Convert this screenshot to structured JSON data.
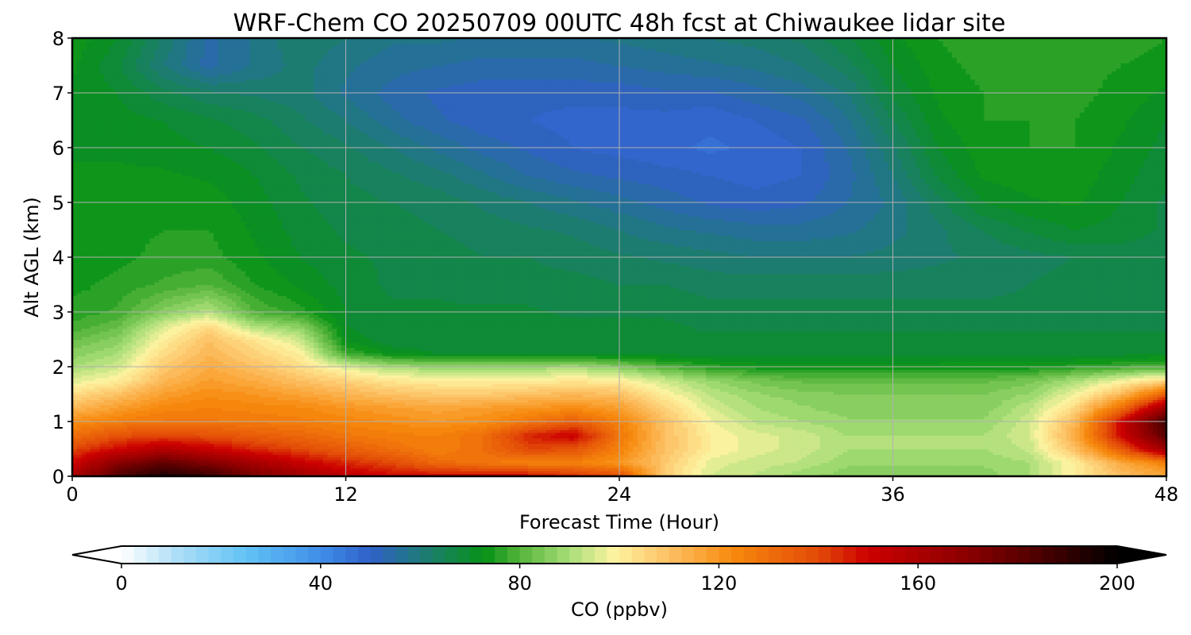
{
  "chart_data": {
    "type": "heatmap",
    "title": "WRF-Chem CO  20250709 00UTC 48h fcst at Chiwaukee lidar site",
    "xlabel": "Forecast Time (Hour)",
    "ylabel": "Alt AGL (km)",
    "xlim": [
      0,
      48
    ],
    "ylim": [
      0,
      8
    ],
    "x_ticks": [
      0,
      12,
      24,
      36,
      48
    ],
    "y_ticks": [
      0,
      1,
      2,
      3,
      4,
      5,
      6,
      7,
      8
    ],
    "grid": true,
    "x": [
      0,
      2,
      4,
      6,
      8,
      10,
      12,
      14,
      16,
      18,
      20,
      22,
      24,
      26,
      28,
      30,
      32,
      34,
      36,
      38,
      40,
      42,
      44,
      46,
      48
    ],
    "y": [
      0,
      0.25,
      0.5,
      0.75,
      1,
      1.25,
      1.5,
      1.75,
      2,
      2.25,
      2.5,
      2.75,
      3,
      3.5,
      4,
      4.5,
      5,
      5.5,
      6,
      6.5,
      7,
      7.5,
      8
    ],
    "z": [
      [
        160,
        185,
        195,
        190,
        175,
        165,
        155,
        150,
        150,
        150,
        150,
        145,
        140,
        108,
        95,
        92,
        88,
        86,
        86,
        86,
        86,
        90,
        100,
        110,
        115
      ],
      [
        150,
        170,
        180,
        172,
        162,
        152,
        145,
        140,
        132,
        128,
        125,
        125,
        120,
        108,
        96,
        94,
        92,
        88,
        88,
        88,
        88,
        90,
        100,
        115,
        125
      ],
      [
        140,
        150,
        158,
        152,
        145,
        140,
        135,
        130,
        125,
        130,
        140,
        138,
        125,
        110,
        100,
        96,
        94,
        90,
        90,
        90,
        90,
        93,
        110,
        135,
        165
      ],
      [
        130,
        138,
        140,
        138,
        135,
        132,
        128,
        126,
        125,
        130,
        145,
        152,
        128,
        110,
        100,
        96,
        94,
        90,
        90,
        90,
        90,
        95,
        115,
        150,
        182
      ],
      [
        122,
        126,
        128,
        128,
        127,
        126,
        124,
        122,
        120,
        122,
        128,
        135,
        125,
        110,
        98,
        92,
        90,
        88,
        88,
        88,
        88,
        94,
        112,
        150,
        188
      ],
      [
        112,
        118,
        124,
        125,
        124,
        123,
        120,
        118,
        116,
        118,
        120,
        122,
        118,
        106,
        95,
        90,
        88,
        86,
        86,
        86,
        86,
        92,
        105,
        130,
        165
      ],
      [
        104,
        110,
        118,
        122,
        120,
        117,
        113,
        110,
        108,
        108,
        110,
        112,
        110,
        100,
        92,
        88,
        86,
        85,
        85,
        85,
        85,
        88,
        98,
        112,
        135
      ],
      [
        96,
        100,
        112,
        118,
        115,
        110,
        106,
        102,
        100,
        100,
        100,
        102,
        100,
        94,
        88,
        84,
        82,
        82,
        82,
        82,
        82,
        84,
        90,
        98,
        105
      ],
      [
        90,
        94,
        108,
        115,
        110,
        104,
        96,
        90,
        88,
        88,
        88,
        90,
        86,
        80,
        76,
        74,
        73,
        73,
        73,
        74,
        74,
        74,
        76,
        78,
        80
      ],
      [
        86,
        90,
        104,
        112,
        106,
        100,
        78,
        72,
        70,
        70,
        70,
        70,
        69,
        69,
        69,
        69,
        69,
        69,
        69,
        69,
        69,
        69,
        69,
        69,
        70
      ],
      [
        82,
        86,
        100,
        110,
        102,
        94,
        72,
        68,
        68,
        68,
        68,
        68,
        68,
        68,
        68,
        68,
        68,
        68,
        68,
        68,
        68,
        68,
        68,
        68,
        68
      ],
      [
        78,
        82,
        95,
        104,
        90,
        86,
        70,
        68,
        68,
        68,
        68,
        68,
        68,
        68,
        67,
        67,
        67,
        67,
        67,
        67,
        67,
        67,
        67,
        67,
        67
      ],
      [
        76,
        78,
        86,
        92,
        80,
        76,
        70,
        68,
        68,
        68,
        68,
        67,
        67,
        67,
        66,
        66,
        66,
        66,
        66,
        66,
        66,
        66,
        66,
        66,
        66
      ],
      [
        74,
        76,
        78,
        80,
        75,
        72,
        69,
        67,
        67,
        66,
        66,
        66,
        65,
        65,
        64,
        64,
        64,
        64,
        64,
        64,
        64,
        65,
        66,
        66,
        66
      ],
      [
        73,
        74,
        76,
        76,
        73,
        70,
        68,
        67,
        66,
        65,
        65,
        64,
        63,
        62,
        61,
        60,
        60,
        60,
        61,
        62,
        63,
        64,
        65,
        66,
        66
      ],
      [
        73,
        74,
        75,
        75,
        72,
        69,
        67,
        66,
        65,
        64,
        63,
        62,
        60,
        58,
        57,
        56,
        56,
        57,
        59,
        62,
        65,
        68,
        70,
        69,
        67
      ],
      [
        73,
        73,
        74,
        74,
        71,
        68,
        66,
        65,
        64,
        62,
        60,
        58,
        56,
        54,
        52,
        51,
        52,
        55,
        58,
        64,
        70,
        72,
        73,
        70,
        67
      ],
      [
        73,
        73,
        73,
        72,
        70,
        67,
        65,
        63,
        61,
        58,
        55,
        53,
        52,
        51,
        50,
        49,
        50,
        54,
        60,
        68,
        73,
        74,
        74,
        71,
        68
      ],
      [
        72,
        72,
        71,
        70,
        68,
        65,
        63,
        60,
        57,
        54,
        52,
        50,
        49,
        48,
        47,
        48,
        50,
        55,
        62,
        70,
        74,
        75,
        75,
        72,
        69
      ],
      [
        72,
        71,
        70,
        68,
        66,
        63,
        60,
        56,
        53,
        51,
        50,
        49,
        49,
        49,
        48,
        50,
        52,
        57,
        65,
        72,
        75,
        75,
        75,
        73,
        70
      ],
      [
        72,
        70,
        66,
        63,
        62,
        61,
        57,
        54,
        52,
        51,
        51,
        51,
        51,
        52,
        52,
        54,
        56,
        60,
        68,
        73,
        75,
        76,
        76,
        74,
        72
      ],
      [
        73,
        68,
        60,
        54,
        58,
        61,
        58,
        56,
        55,
        54,
        54,
        54,
        55,
        56,
        57,
        58,
        60,
        64,
        70,
        74,
        76,
        77,
        76,
        75,
        74
      ],
      [
        74,
        70,
        62,
        54,
        58,
        62,
        60,
        58,
        58,
        57,
        57,
        57,
        58,
        59,
        60,
        61,
        63,
        67,
        72,
        75,
        77,
        77,
        77,
        76,
        75
      ]
    ],
    "colorbar": {
      "label": "CO  (ppbv)",
      "ticks": [
        0,
        40,
        80,
        120,
        160,
        200
      ],
      "min": 0,
      "max": 200,
      "extend": "both",
      "orientation": "horizontal",
      "placement": "bottom",
      "stops": [
        [
          0,
          "#ffffff"
        ],
        [
          12,
          "#a8dcf6"
        ],
        [
          25,
          "#62c2f4"
        ],
        [
          40,
          "#3f8ee8"
        ],
        [
          50,
          "#3060c8"
        ],
        [
          60,
          "#1f7a7a"
        ],
        [
          73,
          "#079216"
        ],
        [
          80,
          "#55b43a"
        ],
        [
          90,
          "#a8de78"
        ],
        [
          99,
          "#fdf3a0"
        ],
        [
          110,
          "#fdc063"
        ],
        [
          123,
          "#f7890c"
        ],
        [
          140,
          "#e24a08"
        ],
        [
          150,
          "#cc0000"
        ],
        [
          170,
          "#8a0000"
        ],
        [
          185,
          "#4a0000"
        ],
        [
          200,
          "#000000"
        ]
      ]
    }
  }
}
